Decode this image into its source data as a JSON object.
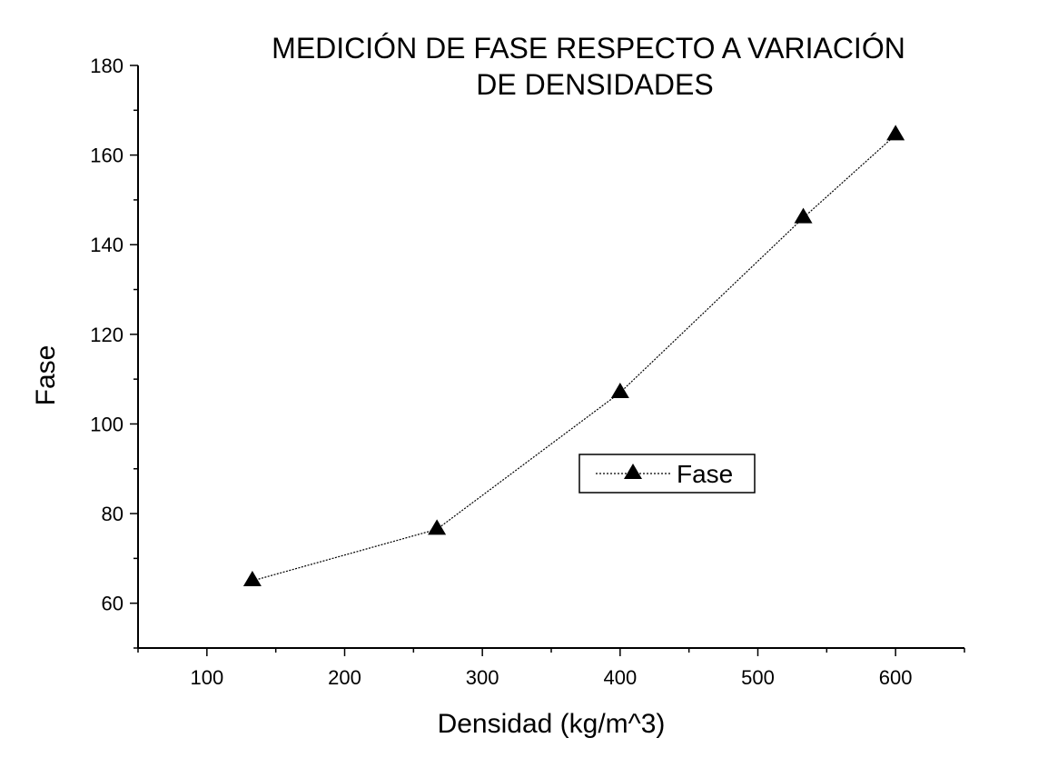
{
  "chart_data": {
    "type": "line",
    "title_lines": [
      "MEDICIÓN DE FASE RESPECTO A VARIACIÓN",
      "DE DENSIDADES"
    ],
    "xlabel": "Densidad (kg/m^3)",
    "ylabel": "Fase",
    "xlim": [
      50,
      650
    ],
    "ylim": [
      50,
      180
    ],
    "xticks": [
      100,
      200,
      300,
      400,
      500,
      600
    ],
    "yticks": [
      60,
      80,
      100,
      120,
      140,
      160,
      180
    ],
    "legend_position": "center-right",
    "grid": false,
    "series": [
      {
        "name": "Fase",
        "marker": "triangle",
        "line_style": "dotted",
        "color": "#000000",
        "x": [
          133,
          267,
          400,
          533,
          600
        ],
        "y": [
          65,
          76.5,
          107,
          146,
          164.5
        ]
      }
    ]
  }
}
